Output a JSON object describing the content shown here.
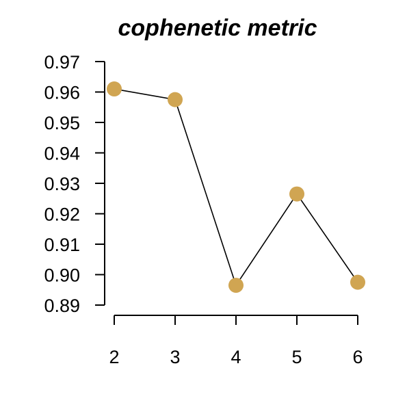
{
  "chart_data": {
    "type": "line",
    "title": "cophenetic metric",
    "xlabel": "",
    "ylabel": "",
    "x": [
      2,
      3,
      4,
      5,
      6
    ],
    "series": [
      {
        "values": [
          0.961,
          0.9575,
          0.8965,
          0.9265,
          0.8975
        ]
      }
    ],
    "xticks": [
      "2",
      "3",
      "4",
      "5",
      "6"
    ],
    "yticks": [
      "0.97",
      "0.96",
      "0.95",
      "0.94",
      "0.93",
      "0.92",
      "0.91",
      "0.90",
      "0.89"
    ],
    "xlim": [
      2,
      6
    ],
    "ylim": [
      0.89,
      0.97
    ],
    "grid": false,
    "marker_color": "#D0A552",
    "line_color": "#000000"
  }
}
